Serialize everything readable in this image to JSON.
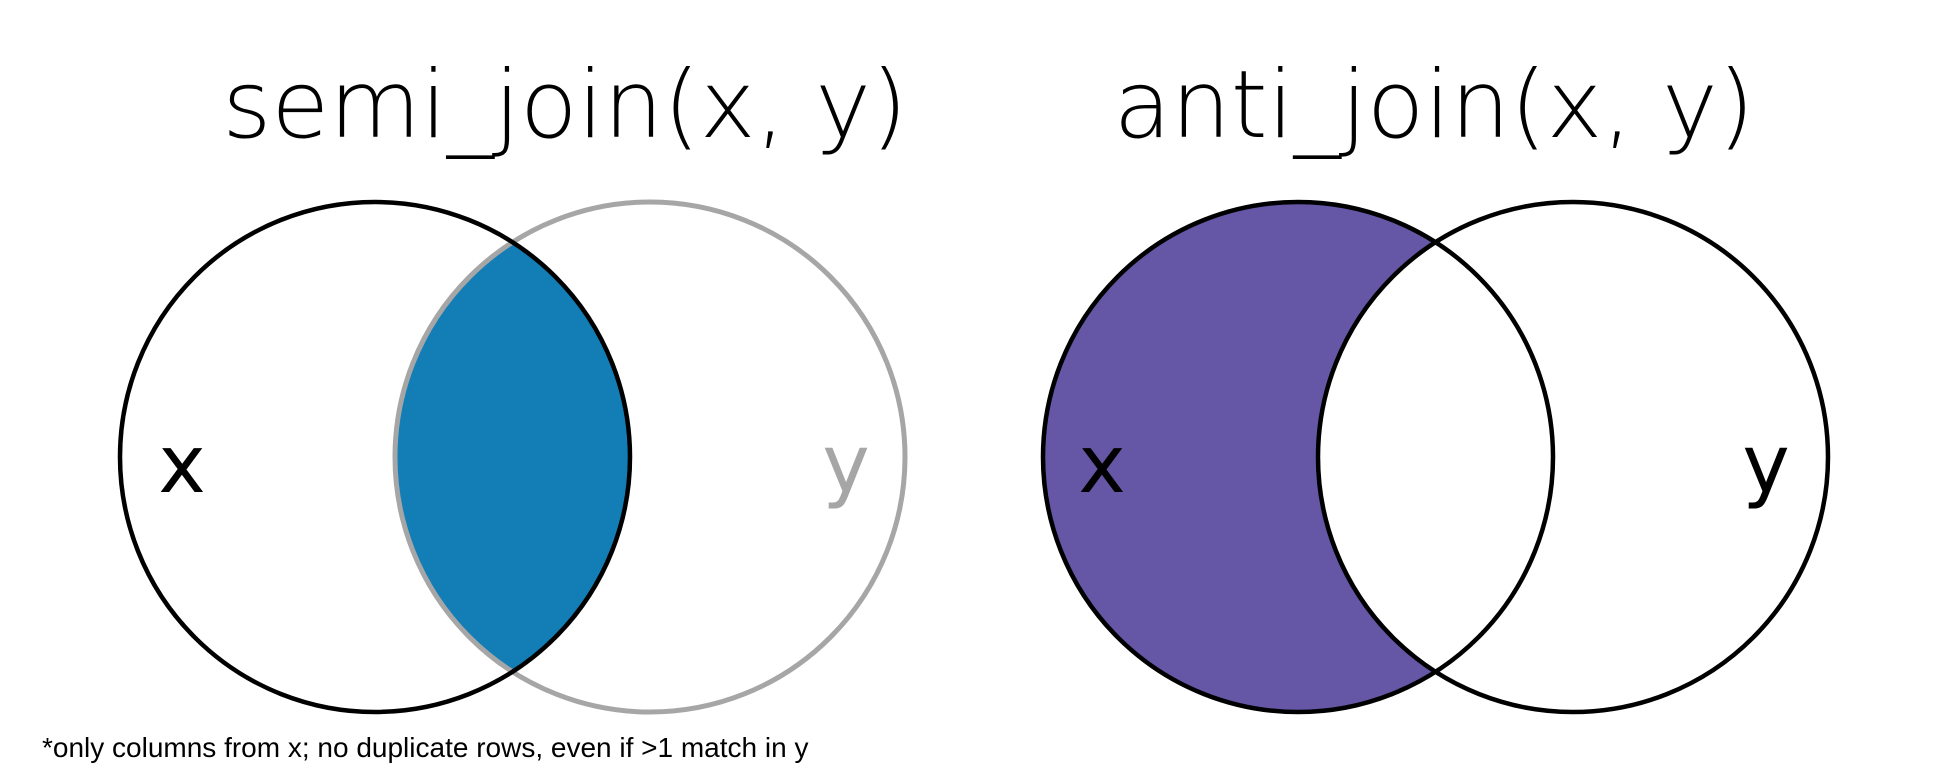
{
  "semi_join": {
    "title": "semi_join(x, y)",
    "x_label": "x",
    "y_label": "y",
    "highlight_color": "#137DB6",
    "y_circle_color": "#A6A6A6"
  },
  "anti_join": {
    "title": "anti_join(x, y)",
    "x_label": "x",
    "y_label": "y",
    "highlight_color": "#6557A5"
  },
  "footnote": "*only columns from x; no duplicate rows, even if >1 match in y",
  "colors": {
    "outline": "#000000",
    "background": "#FFFFFF"
  }
}
